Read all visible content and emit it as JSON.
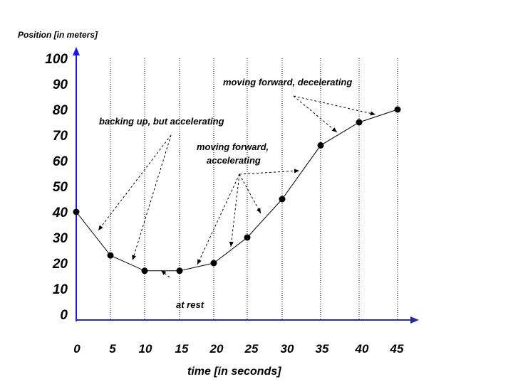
{
  "chart_data": {
    "type": "line",
    "title": "",
    "xlabel": "time [in seconds]",
    "ylabel": "Position [in meters]",
    "x": [
      0,
      5,
      10,
      15,
      20,
      25,
      30,
      35,
      40,
      45
    ],
    "y": [
      40,
      23,
      17,
      17,
      20,
      30,
      45,
      66,
      75,
      80
    ],
    "x_ticks": [
      "0",
      "5",
      "10",
      "15",
      "20",
      "25",
      "30",
      "35",
      "40",
      "45"
    ],
    "y_ticks": [
      "0",
      "10",
      "20",
      "30",
      "40",
      "50",
      "60",
      "70",
      "80",
      "90",
      "100"
    ],
    "ylim": [
      0,
      100
    ],
    "xlim": [
      0,
      45
    ],
    "grid": "vertical dotted lines",
    "axis_color": "#1a1adc",
    "annotations": [
      {
        "text": "backing up, but accelerating"
      },
      {
        "text": "at rest"
      },
      {
        "text": "moving forward,"
      },
      {
        "text": "accelerating"
      },
      {
        "text": "moving forward, decelerating"
      }
    ]
  }
}
